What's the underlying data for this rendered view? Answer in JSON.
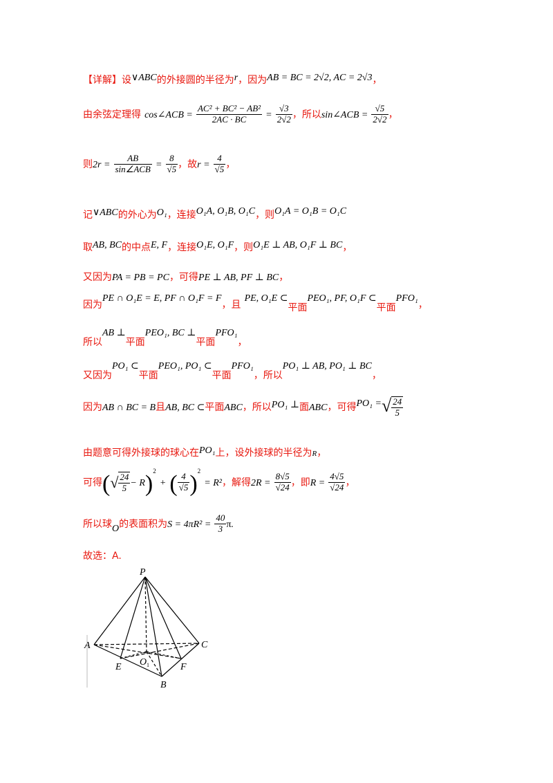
{
  "lines": {
    "l1": {
      "label": "【详解】设",
      "t1": "的外接圆的半径为",
      "t2": "，因为",
      "tri": "∨ABC",
      "r": "r",
      "m1": "AB = BC = 2√2, AC = 2√3",
      "end": "，"
    },
    "l2": {
      "lead": "由余弦定理得",
      "cos_lhs": "cos∠ACB =",
      "cos_num": "AC² + BC² − AB²",
      "cos_den": "2AC · BC",
      "eq": "=",
      "v1_num": "√3",
      "v1_den": "2√2",
      "mid": "，所以",
      "sin_lhs": "sin∠ACB =",
      "v2_num": "√5",
      "v2_den": "2√2",
      "end": "，"
    },
    "l3": {
      "lead": "则",
      "lhs": "2r =",
      "f_num": "AB",
      "f_den": "sin∠ACB",
      "eq": "=",
      "v_num": "8",
      "v_den": "√5",
      "mid": "，故",
      "rlhs": "r =",
      "r_num": "4",
      "r_den": "√5",
      "end": "，"
    },
    "l4": {
      "lead": "记",
      "tri": "∨ABC",
      "t1": "的外心为",
      "o1": "O₁",
      "t2": "，连接",
      "m1": "O₁A, O₁B, O₁C",
      "t3": "，则",
      "m2": "O₁A = O₁B = O₁C"
    },
    "l5": {
      "lead": "取",
      "m1": "AB, BC",
      "t1": "的中点",
      "m2": "E, F",
      "t2": "，连接",
      "m3": "O₁E, O₁F",
      "t3": "，则",
      "m4": "O₁E ⊥ AB, O₁F ⊥ BC",
      "end": "，"
    },
    "l6": {
      "lead": "又因为",
      "m1": "PA = PB = PC",
      "t1": "，可得",
      "m2": "PE ⊥ AB, PF ⊥ BC",
      "end": "，"
    },
    "l7": {
      "lead": "因为",
      "m1": "PE ∩ O₁E = E, PF ∩ O₁F = F",
      "t1": "，且",
      "m2": "PE, O₁E ⊂",
      "p1": "平面",
      "m3": "PEO₁",
      "m4": ", PF, O₁F ⊂",
      "p2": "平面",
      "m5": "PFO₁",
      "end": "，"
    },
    "l8": {
      "lead": "所以",
      "m1": "AB ⊥",
      "p1": "平面",
      "m2": "PEO₁",
      "m3": ", BC ⊥",
      "p2": "平面",
      "m4": "PFO₁",
      "end": "，"
    },
    "l9": {
      "lead": "又因为",
      "m1": "PO₁ ⊂",
      "p1": "平面",
      "m2": "PEO₁",
      "m3": ", PO₁ ⊂",
      "p2": "平面",
      "m4": "PFO₁",
      "t1": "，所以",
      "m5": "PO₁ ⊥ AB, PO₁ ⊥ BC",
      "end": "，"
    },
    "l10": {
      "lead": "因为",
      "m1": "AB ∩ BC = B",
      "t1": "且",
      "m2": "AB, BC ⊂",
      "t2": "平面",
      "m3": "ABC",
      "t3": "，所以",
      "m4": "PO₁ ⊥",
      "t4": "面",
      "m5": "ABC",
      "t5": "，可得",
      "m6": "PO₁ =",
      "rad_num": "24",
      "rad_den": "5"
    },
    "l11": {
      "t1": "由题意可得外接球的球心在",
      "m1": "PO₁",
      "t2": "上，设外接球的半径为",
      "m2": "R",
      "end": "，"
    },
    "l12": {
      "lead": "可得",
      "rad_num": "24",
      "rad_den": "5",
      "minus": "− R",
      "exp": "2",
      "plus": "+",
      "f_num": "4",
      "f_den": "√5",
      "rhs": "= R²",
      "t1": "，解得",
      "m1": "2R =",
      "v_num": "8√5",
      "v_den": "√24",
      "t2": "，即",
      "m2": "R =",
      "w_num": "4√5",
      "w_den": "√24",
      "end": "，"
    },
    "l13": {
      "lead": "所以球",
      "o": "O",
      "t1": "的表面积为",
      "m1": "S = 4πR² =",
      "v_num": "40",
      "v_den": "3",
      "pi": "π",
      "end": "."
    },
    "l14": {
      "text": "故选：A."
    }
  },
  "figure": {
    "labels": {
      "P": "P",
      "A": "A",
      "C": "C",
      "E": "E",
      "O": "O",
      "F": "F",
      "B": "B"
    }
  }
}
